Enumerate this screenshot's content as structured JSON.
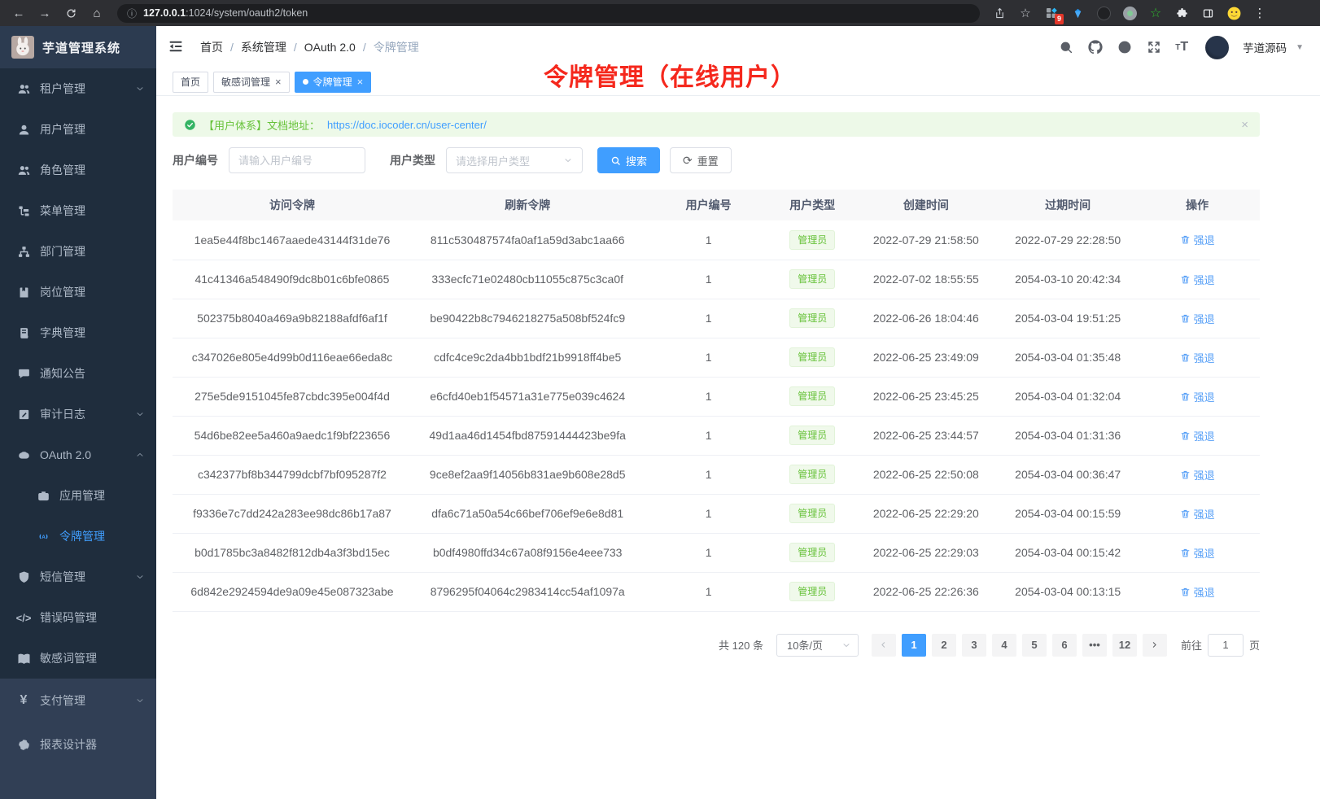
{
  "colors": {
    "primary": "#409eff",
    "success": "#67c23a",
    "annotation_red": "#f5281d",
    "sidebar_bg": "#1f2d3d"
  },
  "browser": {
    "host": "127.0.0.1",
    "path": ":1024/system/oauth2/token",
    "extension_badge": "9"
  },
  "app": {
    "logo_title": "芋道管理系统",
    "breadcrumb": [
      "首页",
      "系统管理",
      "OAuth 2.0",
      "令牌管理"
    ],
    "user_name": "芋道源码"
  },
  "sidebar": {
    "items": [
      {
        "icon": "tenant",
        "label": "租户管理",
        "chevron": "down"
      },
      {
        "icon": "user",
        "label": "用户管理"
      },
      {
        "icon": "role",
        "label": "角色管理"
      },
      {
        "icon": "menu",
        "label": "菜单管理"
      },
      {
        "icon": "dept",
        "label": "部门管理"
      },
      {
        "icon": "post",
        "label": "岗位管理"
      },
      {
        "icon": "dict",
        "label": "字典管理"
      },
      {
        "icon": "notice",
        "label": "通知公告"
      },
      {
        "icon": "audit",
        "label": "审计日志",
        "chevron": "down"
      },
      {
        "icon": "oauth",
        "label": "OAuth 2.0",
        "chevron": "up"
      },
      {
        "icon": "app",
        "label": "应用管理",
        "child": true
      },
      {
        "icon": "token",
        "label": "令牌管理",
        "child": true,
        "active": true
      },
      {
        "icon": "sms",
        "label": "短信管理",
        "chevron": "down"
      },
      {
        "icon": "errcode",
        "label": "错误码管理"
      },
      {
        "icon": "sensitive",
        "label": "敏感词管理"
      },
      {
        "icon": "pay",
        "label": "支付管理",
        "chevron": "down",
        "section": "light"
      },
      {
        "icon": "report",
        "label": "报表设计器",
        "section": "light"
      }
    ]
  },
  "tabs": [
    {
      "label": "首页",
      "closable": false,
      "active": false
    },
    {
      "label": "敏感词管理",
      "closable": true,
      "active": false
    },
    {
      "label": "令牌管理",
      "closable": true,
      "active": true
    }
  ],
  "annotation": {
    "text": "令牌管理（在线用户）"
  },
  "alert": {
    "prefix": "【用户体系】文档地址：",
    "link": "https://doc.iocoder.cn/user-center/"
  },
  "filters": {
    "user_id_label": "用户编号",
    "user_id_placeholder": "请输入用户编号",
    "user_type_label": "用户类型",
    "user_type_placeholder": "请选择用户类型",
    "search_label": "搜索",
    "reset_label": "重置"
  },
  "table": {
    "columns": [
      "访问令牌",
      "刷新令牌",
      "用户编号",
      "用户类型",
      "创建时间",
      "过期时间",
      "操作"
    ],
    "action_label": "强退",
    "rows": [
      [
        "1ea5e44f8bc1467aaede43144f31de76",
        "811c530487574fa0af1a59d3abc1aa66",
        "1",
        "管理员",
        "2022-07-29 21:58:50",
        "2022-07-29 22:28:50"
      ],
      [
        "41c41346a548490f9dc8b01c6bfe0865",
        "333ecfc71e02480cb11055c875c3ca0f",
        "1",
        "管理员",
        "2022-07-02 18:55:55",
        "2054-03-10 20:42:34"
      ],
      [
        "502375b8040a469a9b82188afdf6af1f",
        "be90422b8c7946218275a508bf524fc9",
        "1",
        "管理员",
        "2022-06-26 18:04:46",
        "2054-03-04 19:51:25"
      ],
      [
        "c347026e805e4d99b0d116eae66eda8c",
        "cdfc4ce9c2da4bb1bdf21b9918ff4be5",
        "1",
        "管理员",
        "2022-06-25 23:49:09",
        "2054-03-04 01:35:48"
      ],
      [
        "275e5de9151045fe87cbdc395e004f4d",
        "e6cfd40eb1f54571a31e775e039c4624",
        "1",
        "管理员",
        "2022-06-25 23:45:25",
        "2054-03-04 01:32:04"
      ],
      [
        "54d6be82ee5a460a9aedc1f9bf223656",
        "49d1aa46d1454fbd87591444423be9fa",
        "1",
        "管理员",
        "2022-06-25 23:44:57",
        "2054-03-04 01:31:36"
      ],
      [
        "c342377bf8b344799dcbf7bf095287f2",
        "9ce8ef2aa9f14056b831ae9b608e28d5",
        "1",
        "管理员",
        "2022-06-25 22:50:08",
        "2054-03-04 00:36:47"
      ],
      [
        "f9336e7c7dd242a283ee98dc86b17a87",
        "dfa6c71a50a54c66bef706ef9e6e8d81",
        "1",
        "管理员",
        "2022-06-25 22:29:20",
        "2054-03-04 00:15:59"
      ],
      [
        "b0d1785bc3a8482f812db4a3f3bd15ec",
        "b0df4980ffd34c67a08f9156e4eee733",
        "1",
        "管理员",
        "2022-06-25 22:29:03",
        "2054-03-04 00:15:42"
      ],
      [
        "6d842e2924594de9a09e45e087323abe",
        "8796295f04064c2983414cc54af1097a",
        "1",
        "管理员",
        "2022-06-25 22:26:36",
        "2054-03-04 00:13:15"
      ]
    ]
  },
  "pagination": {
    "total": "共 120 条",
    "page_size": "10条/页",
    "pages": [
      "1",
      "2",
      "3",
      "4",
      "5",
      "6",
      "•••",
      "12"
    ],
    "active_page": "1",
    "goto_label": "前往",
    "goto_value": "1",
    "goto_suffix": "页"
  }
}
